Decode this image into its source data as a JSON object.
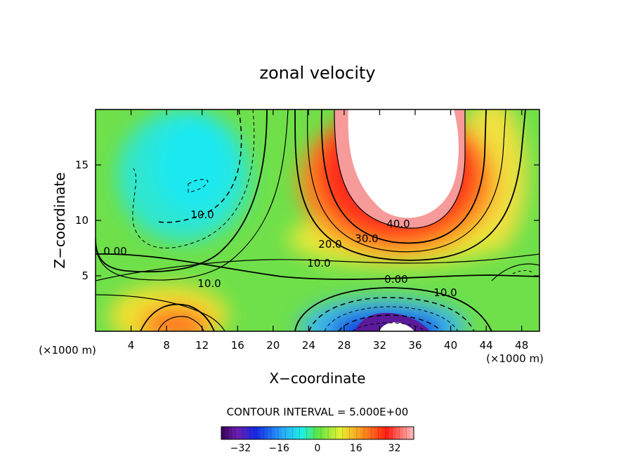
{
  "chart_data": {
    "type": "heatmap",
    "title": "zonal velocity",
    "xlabel": "X−coordinate",
    "ylabel": "Z−coordinate",
    "x_units_left": "(×1000 m)",
    "x_units_right": "(×1000 m)",
    "xlim": [
      0,
      50
    ],
    "ylim": [
      0,
      20
    ],
    "x_ticks": [
      4,
      8,
      12,
      16,
      20,
      24,
      28,
      32,
      36,
      40,
      44,
      48
    ],
    "x_tick_labels": [
      "4",
      "8",
      "12",
      "16",
      "20",
      "24",
      "28",
      "32",
      "36",
      "40",
      "44",
      "48"
    ],
    "y_ticks": [
      5,
      10,
      15
    ],
    "y_tick_labels": [
      "5",
      "10",
      "15"
    ],
    "contour_interval_text": "CONTOUR INTERVAL = 5.000E+00",
    "contour_interval": 5,
    "contour_labels": [
      {
        "text": "10.0",
        "x": 12.5,
        "y": 10.5
      },
      {
        "text": "0.00",
        "x": 3.0,
        "y": 7.5
      },
      {
        "text": "10.0",
        "x": 12.5,
        "y": 4.3
      },
      {
        "text": "20.0",
        "x": 26.5,
        "y": 7.9
      },
      {
        "text": "30.0",
        "x": 31.0,
        "y": 8.6
      },
      {
        "text": "40.0",
        "x": 34.0,
        "y": 9.8
      },
      {
        "text": "10.0",
        "x": 26.5,
        "y": 6.1
      },
      {
        "text": "0.00",
        "x": 34.0,
        "y": 4.8
      },
      {
        "text": "10.0",
        "x": 40.0,
        "y": 3.5
      }
    ],
    "features": [
      {
        "name": "jet core (white, above 40)",
        "x_center": 34.5,
        "z_center": 17,
        "value": 45
      },
      {
        "name": "negative lobe upper-left",
        "x_center": 11,
        "z_center": 14,
        "value": -14
      },
      {
        "name": "negative core bottom",
        "x_center": 33,
        "z_center": 1.5,
        "value": -30
      },
      {
        "name": "positive lobe bottom-left",
        "x_center": 9,
        "z_center": 1.5,
        "value": 25
      }
    ],
    "colorbar": {
      "min": -40,
      "max": 40,
      "ticks": [
        -32,
        -16,
        0,
        16,
        32
      ],
      "tick_labels": [
        "−32",
        "−16",
        "0",
        "16",
        "32"
      ]
    }
  }
}
